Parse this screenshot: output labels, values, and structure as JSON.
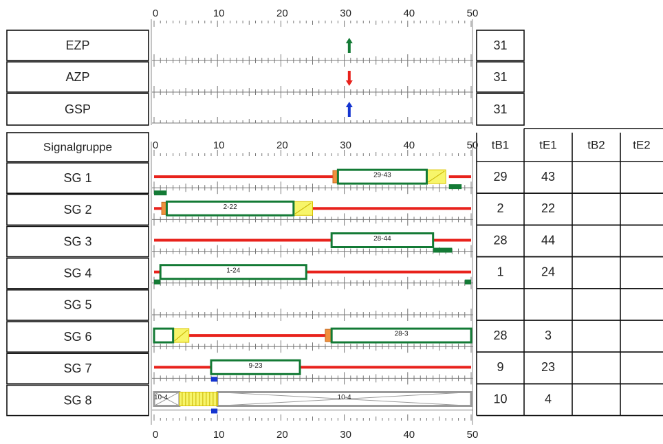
{
  "timeline": {
    "min": 0,
    "max": 50,
    "major_step": 10,
    "minor_step": 1,
    "major_labels": [
      "0",
      "10",
      "20",
      "30",
      "40",
      "50"
    ]
  },
  "colors": {
    "red": "#e8221c",
    "green": "#137a35",
    "yellow": "#f7f56a",
    "orange": "#f0903c",
    "blue": "#1434d0",
    "gray": "#9a9a9a",
    "tick": "#777777"
  },
  "marker_rows": [
    {
      "label": "EZP",
      "value": "31",
      "marker_t": 31,
      "arrow": "up",
      "color": "#137a35"
    },
    {
      "label": "AZP",
      "value": "31",
      "marker_t": 31,
      "arrow": "down",
      "color": "#e8221c"
    },
    {
      "label": "GSP",
      "value": "31",
      "marker_t": 31,
      "arrow": "up",
      "color": "#1434d0"
    }
  ],
  "table": {
    "header_label": "Signalgruppe",
    "columns": [
      "tB1",
      "tE1",
      "tB2",
      "tE2"
    ]
  },
  "signal_groups": [
    {
      "name": "SG 1",
      "tB1": "29",
      "tE1": "43",
      "tB2": "",
      "tE2": "",
      "red": [
        [
          0,
          28.2
        ],
        [
          46.5,
          50
        ]
      ],
      "orange": [
        [
          28.2,
          29
        ]
      ],
      "green": [
        {
          "start": 29,
          "end": 43,
          "label": "29-43"
        }
      ],
      "yellow": [
        [
          43,
          46
        ]
      ],
      "marks": [
        {
          "from": 46.5,
          "to": 48.5,
          "color": "#137a35"
        }
      ]
    },
    {
      "name": "SG 2",
      "tB1": "2",
      "tE1": "22",
      "tB2": "",
      "tE2": "",
      "red": [
        [
          0,
          1.2
        ],
        [
          25,
          50
        ]
      ],
      "orange": [
        [
          1.2,
          2
        ]
      ],
      "green": [
        {
          "start": 2,
          "end": 22,
          "label": "2-22"
        }
      ],
      "yellow": [
        [
          22,
          25
        ]
      ],
      "marks": [
        {
          "from": 0,
          "to": 2,
          "color": "#137a35"
        }
      ]
    },
    {
      "name": "SG 3",
      "tB1": "28",
      "tE1": "44",
      "tB2": "",
      "tE2": "",
      "red": [
        [
          0,
          28
        ],
        [
          44,
          50
        ]
      ],
      "orange": [],
      "green": [
        {
          "start": 28,
          "end": 44,
          "label": "28-44"
        }
      ],
      "yellow": [],
      "marks": [
        {
          "from": 44,
          "to": 47,
          "color": "#137a35"
        }
      ]
    },
    {
      "name": "SG 4",
      "tB1": "1",
      "tE1": "24",
      "tB2": "",
      "tE2": "",
      "red": [
        [
          0,
          1
        ],
        [
          24,
          50
        ]
      ],
      "orange": [],
      "green": [
        {
          "start": 1,
          "end": 24,
          "label": "1-24"
        }
      ],
      "yellow": [],
      "marks": [
        {
          "from": 0,
          "to": 1,
          "color": "#137a35"
        },
        {
          "from": 49,
          "to": 50,
          "color": "#137a35"
        }
      ]
    },
    {
      "name": "SG 5",
      "tB1": "",
      "tE1": "",
      "tB2": "",
      "tE2": "",
      "red": [],
      "orange": [],
      "green": [],
      "yellow": [],
      "marks": []
    },
    {
      "name": "SG 6",
      "tB1": "28",
      "tE1": "3",
      "tB2": "",
      "tE2": "",
      "red": [
        [
          5.5,
          27
        ]
      ],
      "orange": [
        [
          27,
          28
        ]
      ],
      "green": [
        {
          "start": 0,
          "end": 3,
          "label": ""
        },
        {
          "start": 28,
          "end": 50,
          "label": "28-3"
        }
      ],
      "yellow": [
        [
          3,
          5.5
        ]
      ],
      "marks": []
    },
    {
      "name": "SG 7",
      "tB1": "9",
      "tE1": "23",
      "tB2": "",
      "tE2": "",
      "red": [
        [
          0,
          9
        ],
        [
          23,
          50
        ]
      ],
      "orange": [],
      "green": [
        {
          "start": 9,
          "end": 23,
          "label": "9-23"
        }
      ],
      "yellow": [],
      "marks": [
        {
          "from": 9,
          "to": 10,
          "color": "#1434d0"
        }
      ]
    },
    {
      "name": "SG 8",
      "tB1": "10",
      "tE1": "4",
      "tB2": "",
      "tE2": "",
      "red": [],
      "orange": [],
      "green": [],
      "yellow": [],
      "gray": [
        {
          "start": 0,
          "end": 4,
          "label": "10-4"
        },
        {
          "start": 10,
          "end": 50,
          "label": "10-4"
        }
      ],
      "hatched": [
        [
          4,
          10
        ]
      ],
      "marks": [
        {
          "from": 9,
          "to": 10,
          "color": "#1434d0"
        }
      ]
    }
  ]
}
